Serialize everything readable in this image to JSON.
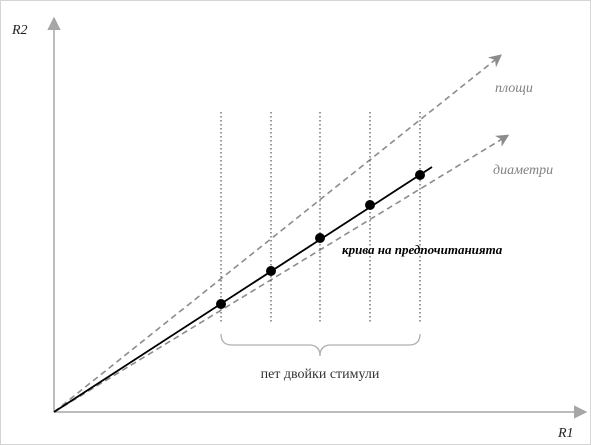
{
  "axes": {
    "x_label": "R1",
    "y_label": "R2"
  },
  "lines": {
    "areas_label": "площи",
    "diameters_label": "диаметри",
    "preference_curve_label": "крива на предпочитанията"
  },
  "stimuli": {
    "count": 5,
    "brace_label": "пет двойки стимули"
  },
  "colors": {
    "axis": "#a6a6a6",
    "reference_lines": "#8c8c8c",
    "curve": "#000000",
    "label_gray": "#808080"
  }
}
